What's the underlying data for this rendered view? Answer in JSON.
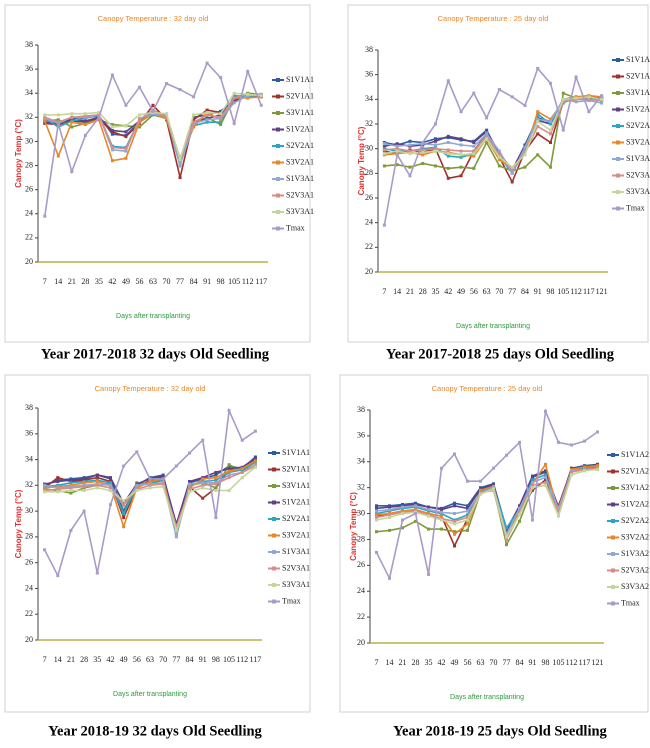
{
  "chart_data": [
    {
      "type": "line",
      "title": "Canopy Temperature : 32 day old",
      "y_label": "Canopy Temp (°C)",
      "x_label": "Days after transplanting",
      "caption": "Year 2017-2018 32 days Old Seedling",
      "categories": [
        7,
        14,
        21,
        28,
        35,
        42,
        49,
        56,
        63,
        70,
        77,
        84,
        91,
        98,
        105,
        112,
        117
      ],
      "ylim": [
        20,
        38
      ],
      "yticks": [
        20,
        22,
        24,
        26,
        28,
        30,
        32,
        34,
        36,
        38
      ],
      "series": [
        {
          "name": "S1V1A1",
          "color": "#2e5c9e",
          "values": [
            31.8,
            31.6,
            31.9,
            32,
            32.1,
            30.6,
            30.5,
            31.6,
            32.6,
            32,
            28,
            32,
            32.2,
            32.5,
            33.4,
            33.9,
            33.8
          ]
        },
        {
          "name": "S2V1A1",
          "color": "#a0312d",
          "values": [
            31.5,
            31.4,
            31.7,
            31.6,
            31.9,
            30.8,
            30.4,
            31.5,
            33,
            31.8,
            27,
            31.8,
            32.6,
            32.4,
            33.3,
            33.8,
            33.7
          ]
        },
        {
          "name": "S3V1A1",
          "color": "#7e9a3a",
          "values": [
            31.7,
            31.8,
            31.2,
            31.5,
            31.8,
            31.4,
            31.3,
            31.2,
            32.2,
            31.9,
            28.2,
            31.5,
            32,
            31.4,
            33.6,
            34,
            33.9
          ]
        },
        {
          "name": "S1V2A1",
          "color": "#5f3f86",
          "values": [
            31.6,
            31.5,
            31.8,
            31.7,
            32,
            30.9,
            30.8,
            31.7,
            32.4,
            32.1,
            28.4,
            31.6,
            31.9,
            32.2,
            33.5,
            33.8,
            33.8
          ]
        },
        {
          "name": "S2V2A1",
          "color": "#2aa5c4",
          "values": [
            31.9,
            31.2,
            31.7,
            31.9,
            32.2,
            29.6,
            29.5,
            31.8,
            32.2,
            32.2,
            28.5,
            31.3,
            31.6,
            31.6,
            33.8,
            33.7,
            33.9
          ]
        },
        {
          "name": "S3V2A1",
          "color": "#e8872a",
          "values": [
            31.7,
            28.8,
            31.6,
            31.4,
            31.8,
            28.4,
            28.6,
            31.6,
            32.3,
            31.9,
            28.3,
            31.2,
            32.4,
            31.8,
            33.6,
            33.6,
            33.7
          ]
        },
        {
          "name": "S1V3A1",
          "color": "#8fa8d6",
          "values": [
            31.9,
            31.5,
            32,
            32,
            32.2,
            29.3,
            29.2,
            31.9,
            32.3,
            32.1,
            28,
            31.5,
            31.8,
            31.9,
            33.2,
            33.8,
            33.9
          ]
        },
        {
          "name": "S2V3A1",
          "color": "#d98b8a",
          "values": [
            32,
            31.6,
            32,
            32.1,
            32.2,
            29.5,
            29.4,
            31.8,
            32.6,
            32,
            28.6,
            31.6,
            32.2,
            32,
            33.6,
            33.9,
            33.8
          ]
        },
        {
          "name": "S3V3A1",
          "color": "#c3d69b",
          "values": [
            32.2,
            32.2,
            32.3,
            32.3,
            32.4,
            31.2,
            31.3,
            32.2,
            32.4,
            32.3,
            28.5,
            32.2,
            32.4,
            32.3,
            34,
            33.9,
            33.8
          ]
        },
        {
          "name": "Tmax",
          "color": "#a99bc8",
          "values": [
            23.8,
            31.5,
            27.5,
            30.5,
            32,
            35.5,
            33,
            34.5,
            32.5,
            34.8,
            34.3,
            33.7,
            36.5,
            35.3,
            31.5,
            35.8,
            33
          ]
        }
      ]
    },
    {
      "type": "line",
      "title": "Canopy Temperature : 25 day old",
      "y_label": "Canopy Temp (°C)",
      "x_label": "Days after transplanting",
      "caption": "Year 2017-2018 25 days Old Seedling",
      "categories": [
        7,
        14,
        21,
        28,
        35,
        42,
        49,
        56,
        63,
        70,
        77,
        84,
        91,
        98,
        105,
        112,
        117,
        121
      ],
      "ylim": [
        20,
        38
      ],
      "yticks": [
        20,
        22,
        24,
        26,
        28,
        30,
        32,
        34,
        36,
        38
      ],
      "series": [
        {
          "name": "S1V1A2",
          "color": "#2e5c9e",
          "values": [
            30.5,
            30.3,
            30.6,
            30.5,
            30.8,
            30.9,
            30.7,
            30.6,
            31.5,
            29.5,
            28.2,
            30.3,
            32.5,
            32.2,
            34,
            34.2,
            34.2,
            34.1
          ]
        },
        {
          "name": "S2V1A2",
          "color": "#a0312d",
          "values": [
            29.8,
            29.6,
            29.9,
            29.7,
            30,
            27.6,
            27.8,
            29.8,
            31.2,
            29.3,
            27.3,
            29.8,
            31.2,
            30.5,
            33.8,
            34,
            34.1,
            34
          ]
        },
        {
          "name": "S3V1A2",
          "color": "#7e9a3a",
          "values": [
            28.6,
            28.7,
            28.5,
            28.8,
            28.6,
            28.4,
            28.5,
            28.4,
            30.5,
            28.6,
            28.2,
            28.5,
            29.5,
            28.5,
            34.5,
            34.1,
            34,
            33.9
          ]
        },
        {
          "name": "S1V2A2",
          "color": "#5f3f86",
          "values": [
            30.2,
            30.4,
            30.2,
            30.3,
            30.6,
            31,
            30.8,
            30.5,
            31.4,
            29.6,
            28.3,
            30.2,
            32.3,
            32,
            33.9,
            34.1,
            34.2,
            34.2
          ]
        },
        {
          "name": "S2V2A2",
          "color": "#2aa5c4",
          "values": [
            30,
            29.8,
            29.8,
            30,
            30.1,
            29.4,
            29.3,
            29.6,
            31.3,
            29.4,
            28,
            29.9,
            32.8,
            32,
            33.7,
            34.2,
            34,
            34
          ]
        },
        {
          "name": "S3V2A2",
          "color": "#e8872a",
          "values": [
            29.5,
            29.6,
            29.7,
            29.5,
            29.8,
            29.7,
            29.5,
            29.4,
            30.8,
            29.1,
            28.4,
            29.6,
            33,
            32.4,
            33.8,
            34.2,
            34.3,
            34.2
          ]
        },
        {
          "name": "S1V3A2",
          "color": "#8fa8d6",
          "values": [
            30.4,
            30.2,
            30.3,
            30.4,
            30.3,
            30.5,
            30.3,
            30.2,
            31.2,
            29.8,
            28,
            30.1,
            32.4,
            32.2,
            34,
            33.8,
            33.9,
            33.7
          ]
        },
        {
          "name": "S2V3A2",
          "color": "#d98b8a",
          "values": [
            29.9,
            30,
            29.8,
            29.9,
            30,
            29.9,
            29.8,
            29.8,
            31,
            29.5,
            28.3,
            29.7,
            31.8,
            31.2,
            33.8,
            34,
            34,
            33.9
          ]
        },
        {
          "name": "S3V3A2",
          "color": "#c3d69b",
          "values": [
            29.6,
            29.8,
            29.6,
            29.7,
            29.8,
            29.6,
            29.5,
            29.6,
            30.8,
            29.3,
            28.5,
            29.5,
            32.2,
            31.5,
            34,
            34.1,
            34.2,
            34
          ]
        },
        {
          "name": "Tmax",
          "color": "#a99bc8",
          "values": [
            23.8,
            29.5,
            27.8,
            30.5,
            32,
            35.5,
            33,
            34.5,
            32.5,
            34.8,
            34.2,
            33.5,
            36.5,
            35.3,
            31.5,
            35.8,
            33,
            34.3
          ]
        }
      ]
    },
    {
      "type": "line",
      "title": "Canopy Temperature : 32 day old",
      "y_label": "Canopy Temp (°C)",
      "x_label": "Days after transplanting",
      "caption": "Year 2018-19 32 days Old Seedling",
      "categories": [
        7,
        14,
        21,
        28,
        35,
        42,
        49,
        56,
        63,
        70,
        77,
        84,
        91,
        98,
        105,
        112,
        117
      ],
      "ylim": [
        20,
        38
      ],
      "yticks": [
        20,
        22,
        24,
        26,
        28,
        30,
        32,
        34,
        36,
        38
      ],
      "series": [
        {
          "name": "S1V1A1",
          "color": "#2e5c9e",
          "values": [
            32,
            32.4,
            32.5,
            32.6,
            32.8,
            32.5,
            30,
            32,
            32.6,
            32.8,
            28.6,
            32.2,
            32.5,
            32.8,
            33.5,
            33.3,
            34.2
          ]
        },
        {
          "name": "S2V1A1",
          "color": "#a0312d",
          "values": [
            31.8,
            32.6,
            32.3,
            32.4,
            32.6,
            32.3,
            29.5,
            31.8,
            32.4,
            32.6,
            28.3,
            31.9,
            31,
            31.8,
            33.2,
            33.2,
            34
          ]
        },
        {
          "name": "S3V1A1",
          "color": "#7e9a3a",
          "values": [
            31.7,
            31.6,
            31.4,
            31.8,
            32,
            32.2,
            29.8,
            32.2,
            32.1,
            32.4,
            28.7,
            32,
            32.2,
            31.8,
            33.6,
            33.1,
            33.8
          ]
        },
        {
          "name": "S1V2A1",
          "color": "#5f3f86",
          "values": [
            32.1,
            32.3,
            32.4,
            32.5,
            32.8,
            32.6,
            30.6,
            32.1,
            32.5,
            32.7,
            29,
            32.3,
            32.6,
            33,
            33.3,
            33.4,
            34.1
          ]
        },
        {
          "name": "S2V2A1",
          "color": "#2aa5c4",
          "values": [
            31.9,
            32,
            32.2,
            32.3,
            32.4,
            32.2,
            29.8,
            31.9,
            32.2,
            32.4,
            28.4,
            32,
            32.3,
            32.4,
            33,
            33.2,
            33.8
          ]
        },
        {
          "name": "S3V2A1",
          "color": "#e8872a",
          "values": [
            31.8,
            31.9,
            32,
            32.2,
            32.3,
            32,
            28.8,
            31.8,
            32.3,
            32.5,
            28.2,
            31.8,
            32.5,
            32.6,
            33.1,
            33.3,
            33.9
          ]
        },
        {
          "name": "S1V3A1",
          "color": "#8fa8d6",
          "values": [
            32,
            31.8,
            31.9,
            32,
            32.1,
            32,
            30.4,
            32,
            32.1,
            32.2,
            28,
            32.1,
            32.2,
            32.2,
            32.8,
            33,
            33.6
          ]
        },
        {
          "name": "S2V3A1",
          "color": "#d98b8a",
          "values": [
            31.6,
            31.7,
            31.8,
            31.9,
            32,
            31.8,
            30.5,
            31.7,
            32,
            32.1,
            28.8,
            31.7,
            32,
            32.1,
            32.6,
            33,
            33.5
          ]
        },
        {
          "name": "S3V3A1",
          "color": "#c3d69b",
          "values": [
            31.5,
            31.5,
            31.6,
            31.6,
            31.8,
            31.6,
            30.8,
            31.6,
            31.8,
            31.9,
            28.5,
            31.5,
            31.8,
            31.6,
            31.6,
            32.6,
            33.4
          ]
        },
        {
          "name": "Tmax",
          "color": "#a99bc8",
          "values": [
            27,
            25,
            28.5,
            30,
            25.2,
            30.5,
            33.5,
            34.6,
            32.5,
            32.5,
            33.5,
            34.5,
            35.5,
            29.5,
            37.8,
            35.5,
            36.2
          ]
        }
      ]
    },
    {
      "type": "line",
      "title": "Canopy Temperature : 25 day old",
      "y_label": "Canopy Temp (°C)",
      "x_label": "Days after transplanting",
      "caption": "Year 2018-19 25 days Old Seedling",
      "categories": [
        7,
        14,
        21,
        28,
        35,
        42,
        49,
        56,
        63,
        70,
        77,
        84,
        91,
        98,
        105,
        112,
        117,
        121
      ],
      "ylim": [
        20,
        38
      ],
      "yticks": [
        20,
        22,
        24,
        26,
        28,
        30,
        32,
        34,
        36,
        38
      ],
      "series": [
        {
          "name": "S1V1A2",
          "color": "#2e5c9e",
          "values": [
            30.6,
            30.6,
            30.7,
            30.8,
            30.5,
            30.4,
            30.8,
            30.6,
            32,
            32.3,
            28.8,
            30.5,
            32.8,
            33.2,
            30.5,
            33.5,
            33.7,
            33.8
          ]
        },
        {
          "name": "S2V1A2",
          "color": "#a0312d",
          "values": [
            29.8,
            30,
            30.2,
            30.3,
            30,
            29.8,
            27.5,
            29.6,
            31.8,
            32,
            28.5,
            30.2,
            31.8,
            32.6,
            30.6,
            33.4,
            33.6,
            33.7
          ]
        },
        {
          "name": "S3V1A2",
          "color": "#7e9a3a",
          "values": [
            28.6,
            28.7,
            28.9,
            29.4,
            28.8,
            28.8,
            28.6,
            28.7,
            31.6,
            32,
            27.6,
            29.4,
            32,
            32.2,
            30.2,
            33.2,
            33.5,
            33.6
          ]
        },
        {
          "name": "S1V2A2",
          "color": "#5f3f86",
          "values": [
            30.4,
            30.5,
            30.6,
            30.7,
            30.5,
            30.3,
            30.6,
            30.4,
            31.9,
            32.2,
            28.7,
            30.6,
            32.9,
            33.3,
            30.3,
            33.5,
            33.6,
            33.8
          ]
        },
        {
          "name": "S2V2A2",
          "color": "#2aa5c4",
          "values": [
            30,
            30.2,
            30.4,
            30.5,
            30.2,
            30,
            29.5,
            29.9,
            31.7,
            32,
            28.9,
            30.3,
            32.6,
            33,
            30.1,
            33.3,
            33.5,
            33.6
          ]
        },
        {
          "name": "S3V2A2",
          "color": "#e8872a",
          "values": [
            29.9,
            30,
            30.2,
            30.3,
            30,
            29.8,
            28.4,
            29.2,
            31.8,
            32.1,
            28.2,
            30.2,
            32.3,
            33.8,
            30,
            33.4,
            33.6,
            33.7
          ]
        },
        {
          "name": "S1V3A2",
          "color": "#8fa8d6",
          "values": [
            30.2,
            30.3,
            30.5,
            30.6,
            30.3,
            30.1,
            30,
            30.2,
            31.6,
            32,
            28.4,
            30.4,
            32.4,
            32.8,
            30.4,
            33.3,
            33.4,
            33.5
          ]
        },
        {
          "name": "S2V3A2",
          "color": "#d98b8a",
          "values": [
            29.7,
            29.9,
            30.1,
            30.2,
            29.9,
            29.6,
            29.4,
            29.7,
            31.6,
            31.8,
            28,
            30,
            32.2,
            32.4,
            30,
            33.2,
            33.4,
            33.5
          ]
        },
        {
          "name": "S3V3A2",
          "color": "#c3d69b",
          "values": [
            29.5,
            29.7,
            30,
            30.1,
            29.8,
            29.5,
            29.2,
            29.5,
            31.5,
            31.9,
            28.2,
            29.9,
            32,
            32.2,
            29.8,
            33,
            33.3,
            33.4
          ]
        },
        {
          "name": "Tmax",
          "color": "#a99bc8",
          "values": [
            27,
            25,
            29.5,
            30,
            25.3,
            33.5,
            34.6,
            32.5,
            32.5,
            33.5,
            34.5,
            35.5,
            29.5,
            37.9,
            35.5,
            35.3,
            35.6,
            36.3
          ]
        }
      ]
    }
  ]
}
